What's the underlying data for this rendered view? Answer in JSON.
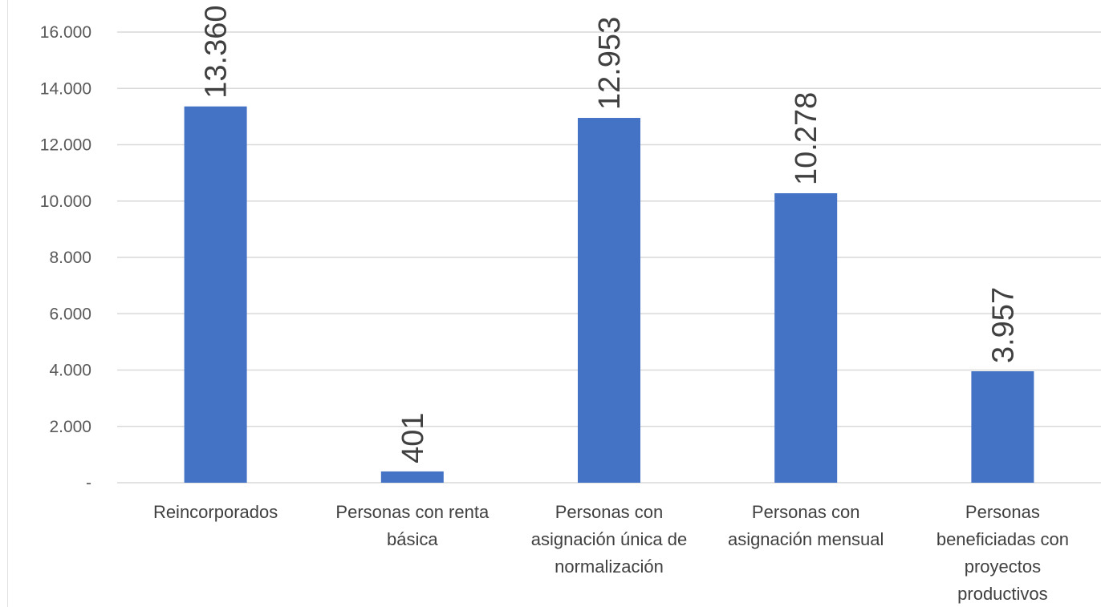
{
  "chart_data": {
    "type": "bar",
    "categories": [
      [
        "Reincorporados"
      ],
      [
        "Personas con renta",
        "básica"
      ],
      [
        "Personas con",
        "asignación única de",
        "normalización"
      ],
      [
        "Personas con",
        "asignación mensual"
      ],
      [
        "Personas",
        "beneficiadas con",
        "proyectos",
        "productivos"
      ]
    ],
    "values": [
      13360,
      401,
      12953,
      10278,
      3957
    ],
    "data_labels": [
      "13.360",
      "401",
      "12.953",
      "10.278",
      "3.957"
    ],
    "ylim": [
      0,
      16000
    ],
    "yticks": [
      0,
      2000,
      4000,
      6000,
      8000,
      10000,
      12000,
      14000,
      16000
    ],
    "ytick_labels": [
      "-",
      "2.000",
      "4.000",
      "6.000",
      "8.000",
      "10.000",
      "12.000",
      "14.000",
      "16.000"
    ],
    "grid": true,
    "legend": "none",
    "colors": {
      "bar": "#4472C4",
      "grid": "#d9d9d9",
      "text": "#404040",
      "axis_text": "#595959"
    }
  }
}
